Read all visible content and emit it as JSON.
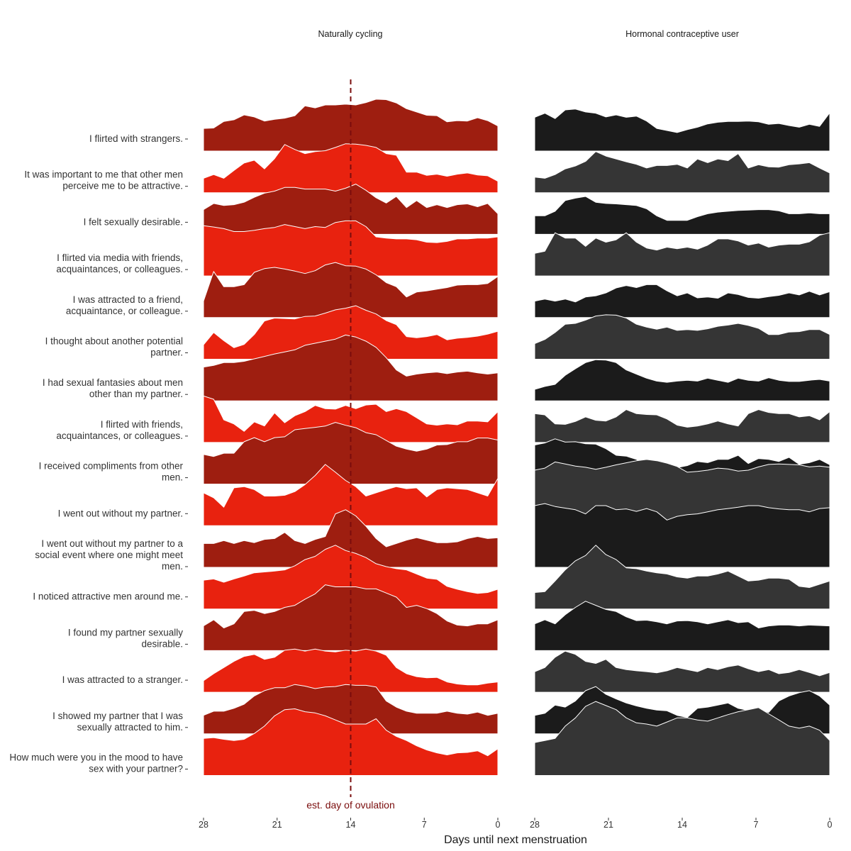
{
  "chart_data": {
    "type": "ridgeline",
    "xlabel": "Days until next menstruation",
    "x_reversed": true,
    "xlim": [
      28,
      0
    ],
    "xticks": [
      28,
      21,
      14,
      7,
      0
    ],
    "ovulation_line": {
      "day": 14,
      "label": "est. day of ovulation",
      "color": "#7a0c0c"
    },
    "panels": [
      {
        "title": "Naturally cycling",
        "colors": [
          "#9e1e10",
          "#e8220f"
        ]
      },
      {
        "title": "Hormonal contraceptive user",
        "colors": [
          "#1b1b1b",
          "#353535"
        ]
      }
    ],
    "rows": [
      {
        "label": "I flirted with strangers.",
        "nc": [
          0.55,
          0.56,
          0.72,
          0.76,
          0.88,
          0.83,
          0.73,
          0.77,
          0.8,
          0.86,
          1.1,
          1.05,
          1.12,
          1.12,
          1.14,
          1.12,
          1.18,
          1.26,
          1.25,
          1.17,
          1.03,
          0.95,
          0.87,
          0.86,
          0.71,
          0.74,
          0.73,
          0.81,
          0.74,
          0.61
        ],
        "hc": [
          0.82,
          0.92,
          0.79,
          1.0,
          1.02,
          0.95,
          0.92,
          0.83,
          0.88,
          0.82,
          0.85,
          0.73,
          0.55,
          0.5,
          0.45,
          0.52,
          0.58,
          0.66,
          0.7,
          0.72,
          0.72,
          0.73,
          0.71,
          0.65,
          0.67,
          0.62,
          0.58,
          0.65,
          0.6,
          0.93
        ]
      },
      {
        "label": "It was important to me that other men perceive me to be attractive.",
        "nc": [
          0.35,
          0.44,
          0.35,
          0.54,
          0.72,
          0.79,
          0.58,
          0.83,
          1.17,
          1.05,
          0.95,
          1.0,
          1.02,
          1.1,
          1.19,
          1.18,
          1.15,
          1.1,
          0.95,
          0.91,
          0.5,
          0.5,
          0.42,
          0.45,
          0.4,
          0.45,
          0.48,
          0.43,
          0.41,
          0.28
        ],
        "hc": [
          0.38,
          0.35,
          0.44,
          0.58,
          0.65,
          0.76,
          1.0,
          0.89,
          0.82,
          0.75,
          0.69,
          0.6,
          0.66,
          0.66,
          0.69,
          0.6,
          0.82,
          0.73,
          0.82,
          0.78,
          0.95,
          0.6,
          0.68,
          0.63,
          0.62,
          0.68,
          0.7,
          0.73,
          0.6,
          0.48
        ]
      },
      {
        "label": "I felt sexually desirable.",
        "nc": [
          0.6,
          0.75,
          0.7,
          0.72,
          0.78,
          0.9,
          1.0,
          1.05,
          1.14,
          1.14,
          1.1,
          1.1,
          1.1,
          1.05,
          1.12,
          1.22,
          1.07,
          0.89,
          0.76,
          0.92,
          0.65,
          0.82,
          0.65,
          0.72,
          0.65,
          0.72,
          0.74,
          0.67,
          0.75,
          0.5
        ],
        "hc": [
          0.45,
          0.45,
          0.56,
          0.82,
          0.88,
          0.92,
          0.78,
          0.75,
          0.74,
          0.72,
          0.7,
          0.62,
          0.45,
          0.34,
          0.34,
          0.34,
          0.43,
          0.5,
          0.54,
          0.56,
          0.58,
          0.59,
          0.6,
          0.6,
          0.57,
          0.5,
          0.5,
          0.52,
          0.5,
          0.5
        ]
      },
      {
        "label": "I flirted via media with friends, acquaintances, or colleagues.",
        "nc": [
          1.22,
          1.19,
          1.15,
          1.08,
          1.08,
          1.11,
          1.15,
          1.18,
          1.25,
          1.2,
          1.15,
          1.2,
          1.18,
          1.3,
          1.34,
          1.34,
          1.2,
          0.95,
          0.92,
          0.9,
          0.9,
          0.88,
          0.82,
          0.81,
          0.84,
          0.9,
          0.9,
          0.92,
          0.92,
          0.95
        ],
        "hc": [
          0.55,
          0.6,
          1.05,
          0.92,
          0.92,
          0.72,
          0.92,
          0.82,
          0.88,
          1.05,
          0.82,
          0.68,
          0.63,
          0.7,
          0.66,
          0.7,
          0.65,
          0.75,
          0.9,
          0.9,
          0.85,
          0.75,
          0.8,
          0.7,
          0.75,
          0.77,
          0.77,
          0.83,
          0.99,
          1.05
        ]
      },
      {
        "label": "I was attracted to a friend, acquaintance, or colleague.",
        "nc": [
          0.4,
          1.12,
          0.75,
          0.75,
          0.8,
          1.1,
          1.19,
          1.22,
          1.18,
          1.13,
          1.07,
          1.14,
          1.28,
          1.34,
          1.26,
          1.25,
          1.18,
          1.04,
          0.85,
          0.75,
          0.5,
          0.62,
          0.65,
          0.69,
          0.73,
          0.79,
          0.8,
          0.8,
          0.83,
          1.0
        ],
        "hc": [
          0.4,
          0.45,
          0.4,
          0.45,
          0.38,
          0.5,
          0.53,
          0.6,
          0.72,
          0.78,
          0.73,
          0.8,
          0.8,
          0.65,
          0.53,
          0.6,
          0.48,
          0.5,
          0.47,
          0.6,
          0.56,
          0.49,
          0.47,
          0.51,
          0.54,
          0.6,
          0.55,
          0.64,
          0.55,
          0.63
        ]
      },
      {
        "label": "I thought about another potential partner.",
        "nc": [
          0.35,
          0.65,
          0.45,
          0.28,
          0.36,
          0.6,
          0.93,
          1.0,
          0.99,
          0.98,
          1.04,
          1.05,
          1.12,
          1.2,
          1.24,
          1.3,
          1.19,
          1.1,
          0.94,
          0.84,
          0.55,
          0.52,
          0.55,
          0.6,
          0.47,
          0.51,
          0.53,
          0.56,
          0.61,
          0.68
        ],
        "hc": [
          0.38,
          0.48,
          0.65,
          0.85,
          0.87,
          0.95,
          1.05,
          1.08,
          1.07,
          1.0,
          0.85,
          0.78,
          0.73,
          0.78,
          0.7,
          0.72,
          0.7,
          0.74,
          0.8,
          0.83,
          0.87,
          0.82,
          0.75,
          0.6,
          0.6,
          0.66,
          0.67,
          0.72,
          0.72,
          0.6
        ]
      },
      {
        "label": "I had sexual fantasies about men other than my partner.",
        "nc": [
          0.82,
          0.86,
          0.93,
          0.93,
          0.96,
          1.02,
          1.08,
          1.14,
          1.19,
          1.24,
          1.35,
          1.4,
          1.45,
          1.5,
          1.6,
          1.55,
          1.45,
          1.3,
          1.05,
          0.75,
          0.6,
          0.65,
          0.68,
          0.7,
          0.66,
          0.7,
          0.72,
          0.68,
          0.65,
          0.68
        ],
        "hc": [
          0.28,
          0.35,
          0.4,
          0.62,
          0.78,
          0.93,
          1.0,
          0.99,
          0.93,
          0.75,
          0.65,
          0.55,
          0.48,
          0.45,
          0.48,
          0.5,
          0.48,
          0.55,
          0.5,
          0.45,
          0.55,
          0.5,
          0.48,
          0.56,
          0.5,
          0.47,
          0.47,
          0.5,
          0.52,
          0.48
        ]
      },
      {
        "label": "I flirted with friends, acquaintances, or colleagues.",
        "nc": [
          1.13,
          1.05,
          0.55,
          0.45,
          0.27,
          0.5,
          0.4,
          0.72,
          0.48,
          0.65,
          0.75,
          0.9,
          0.82,
          0.81,
          0.9,
          0.82,
          0.91,
          0.93,
          0.75,
          0.82,
          0.75,
          0.6,
          0.45,
          0.42,
          0.45,
          0.43,
          0.52,
          0.52,
          0.5,
          0.75
        ],
        "hc": [
          0.7,
          0.67,
          0.45,
          0.44,
          0.51,
          0.62,
          0.54,
          0.52,
          0.62,
          0.8,
          0.7,
          0.68,
          0.67,
          0.57,
          0.42,
          0.37,
          0.4,
          0.45,
          0.52,
          0.45,
          0.4,
          0.7,
          0.8,
          0.73,
          0.7,
          0.7,
          0.62,
          0.65,
          0.55,
          0.75
        ]
      },
      {
        "label": "I received compliments from other men.",
        "nc": [
          0.72,
          0.67,
          0.75,
          0.75,
          1.03,
          1.13,
          1.03,
          1.13,
          1.15,
          1.32,
          1.35,
          1.38,
          1.41,
          1.5,
          1.43,
          1.37,
          1.25,
          1.2,
          1.06,
          0.92,
          0.85,
          0.8,
          0.85,
          0.95,
          0.96,
          1.03,
          1.03,
          1.12,
          1.12,
          1.07
        ],
        "hc": [
          0.95,
          1.0,
          1.1,
          1.02,
          1.03,
          0.98,
          0.97,
          0.86,
          0.7,
          0.68,
          0.6,
          0.45,
          0.48,
          0.42,
          0.4,
          0.45,
          0.55,
          0.52,
          0.6,
          0.6,
          0.7,
          0.5,
          0.62,
          0.6,
          0.55,
          0.65,
          0.48,
          0.52,
          0.6,
          0.47
        ]
      },
      {
        "label": "I went out without my partner.",
        "nc": [
          0.8,
          0.68,
          0.45,
          0.92,
          0.95,
          0.88,
          0.72,
          0.72,
          0.74,
          0.83,
          1.0,
          1.22,
          1.49,
          1.3,
          1.1,
          0.95,
          0.72,
          0.8,
          0.88,
          0.95,
          0.9,
          0.92,
          0.7,
          0.88,
          0.92,
          0.9,
          0.88,
          0.8,
          0.72,
          1.15
        ],
        "hc": [
          1.35,
          1.4,
          1.55,
          1.5,
          1.45,
          1.42,
          1.37,
          1.42,
          1.48,
          1.53,
          1.58,
          1.61,
          1.58,
          1.52,
          1.44,
          1.3,
          1.32,
          1.35,
          1.4,
          1.38,
          1.33,
          1.35,
          1.43,
          1.49,
          1.5,
          1.49,
          1.48,
          1.43,
          1.45,
          1.42
        ]
      },
      {
        "label": "I went out without my partner to a social event where one might meet men.",
        "nc": [
          0.58,
          0.58,
          0.65,
          0.58,
          0.65,
          0.6,
          0.68,
          0.7,
          0.85,
          0.65,
          0.58,
          0.68,
          0.75,
          1.3,
          1.4,
          1.25,
          1.0,
          0.7,
          0.5,
          0.58,
          0.66,
          0.72,
          0.66,
          0.6,
          0.6,
          0.62,
          0.7,
          0.75,
          0.7,
          0.72
        ],
        "hc": [
          1.5,
          1.55,
          1.48,
          1.44,
          1.4,
          1.3,
          1.5,
          1.5,
          1.4,
          1.42,
          1.36,
          1.43,
          1.35,
          1.15,
          1.24,
          1.28,
          1.3,
          1.35,
          1.4,
          1.43,
          1.46,
          1.5,
          1.5,
          1.45,
          1.42,
          1.4,
          1.4,
          1.35,
          1.43,
          1.45
        ]
      },
      {
        "label": "I noticed attractive men around me.",
        "nc": [
          0.7,
          0.73,
          0.65,
          0.73,
          0.8,
          0.88,
          0.9,
          0.92,
          0.95,
          1.05,
          1.2,
          1.28,
          1.45,
          1.55,
          1.42,
          1.35,
          1.25,
          1.1,
          1.03,
          0.98,
          0.95,
          0.85,
          0.75,
          0.72,
          0.55,
          0.48,
          0.42,
          0.38,
          0.4,
          0.48
        ],
        "hc": [
          0.4,
          0.42,
          0.68,
          0.95,
          1.17,
          1.3,
          1.55,
          1.32,
          1.2,
          1.0,
          0.98,
          0.92,
          0.88,
          0.85,
          0.78,
          0.75,
          0.8,
          0.8,
          0.85,
          0.92,
          0.8,
          0.68,
          0.7,
          0.75,
          0.75,
          0.72,
          0.55,
          0.52,
          0.6,
          0.68
        ]
      },
      {
        "label": "I found my partner sexually desirable.",
        "nc": [
          0.6,
          0.75,
          0.55,
          0.65,
          0.95,
          0.98,
          0.9,
          0.95,
          1.05,
          1.1,
          1.25,
          1.38,
          1.6,
          1.55,
          1.55,
          1.55,
          1.5,
          1.5,
          1.4,
          1.3,
          1.05,
          1.1,
          1.02,
          0.9,
          0.72,
          0.62,
          0.6,
          0.65,
          0.65,
          0.75
        ],
        "hc": [
          0.65,
          0.75,
          0.65,
          0.87,
          1.05,
          1.2,
          1.1,
          1.0,
          0.95,
          0.82,
          0.73,
          0.74,
          0.7,
          0.65,
          0.72,
          0.73,
          0.7,
          0.65,
          0.7,
          0.75,
          0.68,
          0.7,
          0.55,
          0.6,
          0.62,
          0.62,
          0.6,
          0.62,
          0.61,
          0.6
        ]
      },
      {
        "label": "I was attracted to a stranger.",
        "nc": [
          0.28,
          0.45,
          0.6,
          0.75,
          0.87,
          0.92,
          0.8,
          0.85,
          1.02,
          1.05,
          1.0,
          1.05,
          1.0,
          0.98,
          1.02,
          1.0,
          1.05,
          1.0,
          0.9,
          0.6,
          0.45,
          0.38,
          0.35,
          0.36,
          0.25,
          0.2,
          0.18,
          0.18,
          0.22,
          0.25
        ],
        "hc": [
          0.5,
          0.6,
          0.85,
          1.0,
          0.92,
          0.75,
          0.7,
          0.8,
          0.6,
          0.55,
          0.52,
          0.5,
          0.47,
          0.52,
          0.6,
          0.55,
          0.5,
          0.6,
          0.55,
          0.62,
          0.66,
          0.57,
          0.5,
          0.55,
          0.45,
          0.48,
          0.55,
          0.48,
          0.4,
          0.48
        ]
      },
      {
        "label": "I showed my partner that I was sexually attracted to him.",
        "nc": [
          0.45,
          0.55,
          0.55,
          0.62,
          0.72,
          0.92,
          1.05,
          1.12,
          1.12,
          1.2,
          1.16,
          1.1,
          1.14,
          1.15,
          1.2,
          1.18,
          1.18,
          1.14,
          0.8,
          0.65,
          0.55,
          0.5,
          0.5,
          0.5,
          0.55,
          0.5,
          0.48,
          0.53,
          0.45,
          0.5
        ],
        "hc": [
          0.45,
          0.5,
          0.7,
          0.65,
          0.8,
          1.05,
          1.15,
          0.96,
          0.85,
          0.75,
          0.68,
          0.62,
          0.58,
          0.56,
          0.45,
          0.4,
          0.62,
          0.65,
          0.7,
          0.75,
          0.62,
          0.57,
          0.6,
          0.52,
          0.8,
          0.92,
          1.0,
          1.05,
          0.92,
          0.7
        ]
      },
      {
        "label": "How much were you in the mood to have sex with your partner?",
        "nc": [
          0.9,
          0.92,
          0.88,
          0.85,
          0.88,
          1.02,
          1.2,
          1.45,
          1.6,
          1.62,
          1.55,
          1.52,
          1.45,
          1.35,
          1.25,
          1.25,
          1.25,
          1.38,
          1.1,
          0.95,
          0.85,
          0.72,
          0.62,
          0.55,
          0.5,
          0.55,
          0.56,
          0.6,
          0.48,
          0.65
        ],
        "hc": [
          0.8,
          0.85,
          0.9,
          1.2,
          1.4,
          1.68,
          1.8,
          1.7,
          1.6,
          1.4,
          1.28,
          1.25,
          1.2,
          1.3,
          1.4,
          1.4,
          1.35,
          1.32,
          1.4,
          1.48,
          1.55,
          1.6,
          1.65,
          1.5,
          1.35,
          1.2,
          1.15,
          1.2,
          1.1,
          0.85
        ]
      }
    ]
  }
}
